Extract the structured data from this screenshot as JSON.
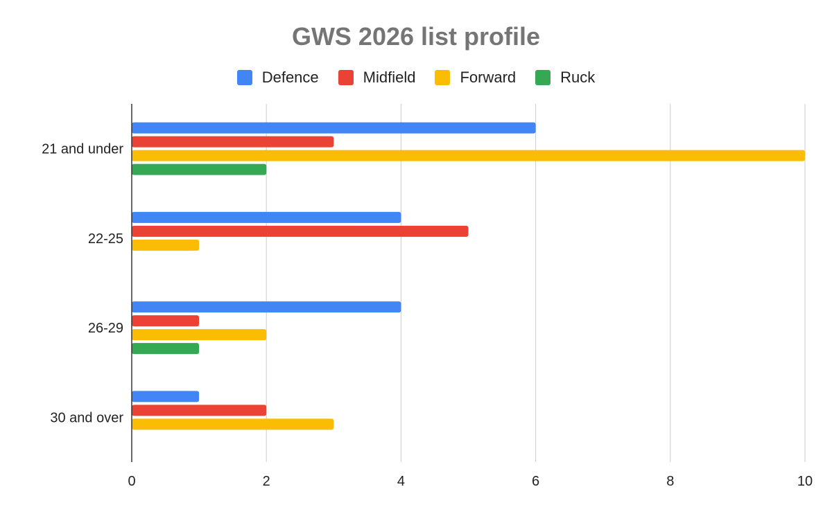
{
  "chart_data": {
    "type": "bar",
    "orientation": "horizontal",
    "title": "GWS 2026 list profile",
    "categories": [
      "21 and under",
      "22-25",
      "26-29",
      "30 and over"
    ],
    "series": [
      {
        "name": "Defence",
        "color": "#4285F4",
        "values": [
          6,
          4,
          4,
          1
        ]
      },
      {
        "name": "Midfield",
        "color": "#EA4335",
        "values": [
          3,
          5,
          1,
          2
        ]
      },
      {
        "name": "Forward",
        "color": "#FBBC04",
        "values": [
          10,
          1,
          2,
          3
        ]
      },
      {
        "name": "Ruck",
        "color": "#34A853",
        "values": [
          2,
          0,
          1,
          0
        ]
      }
    ],
    "xlim": [
      0,
      10
    ],
    "xticks": [
      "0",
      "2",
      "4",
      "6",
      "8",
      "10"
    ],
    "grid": true,
    "legend_position": "top-center"
  }
}
